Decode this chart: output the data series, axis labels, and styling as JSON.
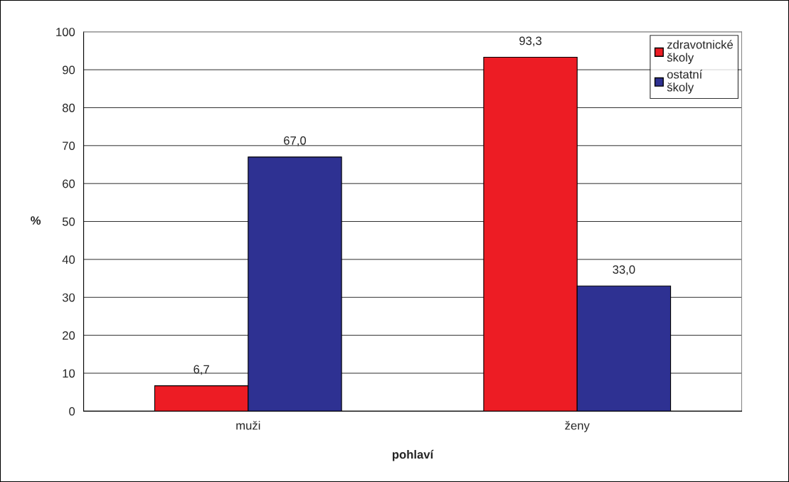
{
  "chart_data": {
    "type": "bar",
    "xlabel": "pohlaví",
    "ylabel": "%",
    "categories": [
      "muži",
      "ženy"
    ],
    "series": [
      {
        "name": "zdravotnické\nškoly",
        "color": "#ed1c24",
        "values": [
          6.7,
          93.3
        ],
        "value_labels": [
          "6,7",
          "93,3"
        ]
      },
      {
        "name": "ostatní\nškoly",
        "color": "#2e3192",
        "values": [
          67.0,
          33.0
        ],
        "value_labels": [
          "67,0",
          "33,0"
        ]
      }
    ],
    "ylim": [
      0,
      100
    ],
    "yticks": [
      0,
      10,
      20,
      30,
      40,
      50,
      60,
      70,
      80,
      90,
      100
    ],
    "grid": "y",
    "legend": "top right"
  }
}
